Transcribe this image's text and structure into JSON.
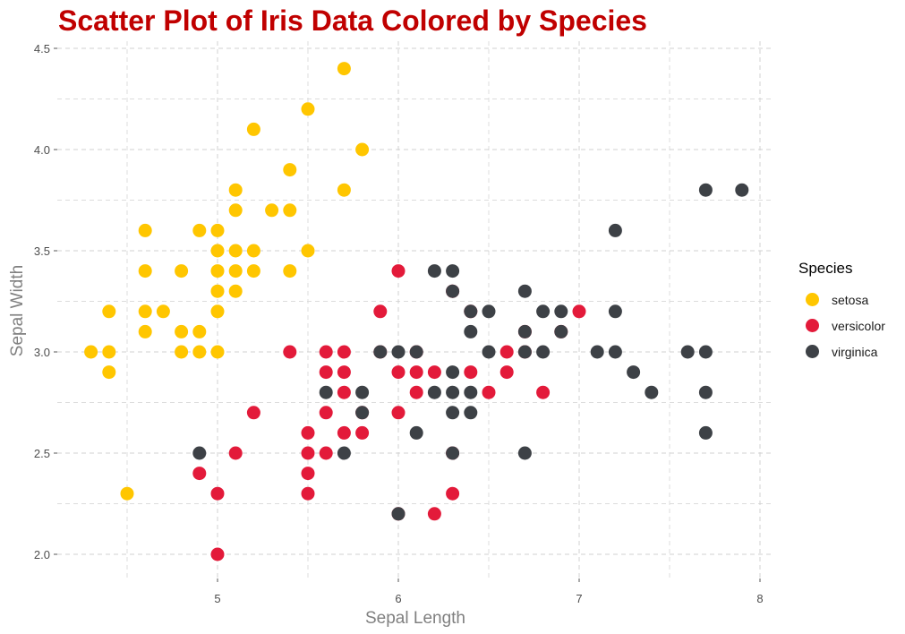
{
  "chart_data": {
    "type": "scatter",
    "title": "Scatter Plot of Iris Data Colored by Species",
    "xlabel": "Sepal Length",
    "ylabel": "Sepal Width",
    "xlim": [
      4.15,
      8.05
    ],
    "ylim": [
      1.88,
      4.52
    ],
    "x_ticks": [
      5,
      6,
      7,
      8
    ],
    "x_tick_labels": [
      "5",
      "6",
      "7",
      "8"
    ],
    "y_ticks": [
      2.0,
      2.5,
      3.0,
      3.5,
      4.0,
      4.5
    ],
    "y_tick_labels": [
      "2.0",
      "2.5",
      "3.0",
      "3.5",
      "4.0",
      "4.5"
    ],
    "grid": true,
    "legend_title": "Species",
    "legend_position": "right",
    "title_color": "#c00000",
    "series": [
      {
        "name": "setosa",
        "color": "#ffc600",
        "points": [
          [
            4.3,
            3.0
          ],
          [
            4.4,
            2.9
          ],
          [
            4.4,
            3.0
          ],
          [
            4.4,
            3.2
          ],
          [
            4.5,
            2.3
          ],
          [
            4.6,
            3.1
          ],
          [
            4.6,
            3.2
          ],
          [
            4.6,
            3.4
          ],
          [
            4.6,
            3.6
          ],
          [
            4.7,
            3.2
          ],
          [
            4.8,
            3.0
          ],
          [
            4.8,
            3.1
          ],
          [
            4.8,
            3.4
          ],
          [
            4.9,
            3.0
          ],
          [
            4.9,
            3.1
          ],
          [
            4.9,
            3.6
          ],
          [
            5.0,
            3.0
          ],
          [
            5.0,
            3.2
          ],
          [
            5.0,
            3.3
          ],
          [
            5.0,
            3.4
          ],
          [
            5.0,
            3.5
          ],
          [
            5.0,
            3.6
          ],
          [
            5.1,
            3.3
          ],
          [
            5.1,
            3.4
          ],
          [
            5.1,
            3.5
          ],
          [
            5.1,
            3.7
          ],
          [
            5.1,
            3.8
          ],
          [
            5.2,
            3.4
          ],
          [
            5.2,
            3.5
          ],
          [
            5.2,
            4.1
          ],
          [
            5.3,
            3.7
          ],
          [
            5.4,
            3.4
          ],
          [
            5.4,
            3.7
          ],
          [
            5.4,
            3.9
          ],
          [
            5.5,
            3.5
          ],
          [
            5.5,
            4.2
          ],
          [
            5.7,
            3.8
          ],
          [
            5.7,
            4.4
          ],
          [
            5.8,
            4.0
          ]
        ]
      },
      {
        "name": "versicolor",
        "color": "#e31a3a",
        "points": [
          [
            4.9,
            2.4
          ],
          [
            5.0,
            2.0
          ],
          [
            5.0,
            2.3
          ],
          [
            5.1,
            2.5
          ],
          [
            5.2,
            2.7
          ],
          [
            5.4,
            3.0
          ],
          [
            5.5,
            2.3
          ],
          [
            5.5,
            2.4
          ],
          [
            5.5,
            2.5
          ],
          [
            5.5,
            2.6
          ],
          [
            5.6,
            2.5
          ],
          [
            5.6,
            2.7
          ],
          [
            5.6,
            2.9
          ],
          [
            5.6,
            3.0
          ],
          [
            5.7,
            2.6
          ],
          [
            5.7,
            2.8
          ],
          [
            5.7,
            2.9
          ],
          [
            5.7,
            3.0
          ],
          [
            5.8,
            2.6
          ],
          [
            5.8,
            2.7
          ],
          [
            5.9,
            3.0
          ],
          [
            5.9,
            3.2
          ],
          [
            6.0,
            2.2
          ],
          [
            6.0,
            2.7
          ],
          [
            6.0,
            2.9
          ],
          [
            6.0,
            3.4
          ],
          [
            6.1,
            2.8
          ],
          [
            6.1,
            2.9
          ],
          [
            6.1,
            3.0
          ],
          [
            6.2,
            2.2
          ],
          [
            6.2,
            2.9
          ],
          [
            6.3,
            2.3
          ],
          [
            6.3,
            2.5
          ],
          [
            6.3,
            3.3
          ],
          [
            6.4,
            2.9
          ],
          [
            6.4,
            3.2
          ],
          [
            6.5,
            2.8
          ],
          [
            6.6,
            2.9
          ],
          [
            6.6,
            3.0
          ],
          [
            6.7,
            3.0
          ],
          [
            6.7,
            3.1
          ],
          [
            6.8,
            2.8
          ],
          [
            6.9,
            3.1
          ],
          [
            7.0,
            3.2
          ]
        ]
      },
      {
        "name": "virginica",
        "color": "#3d4146",
        "points": [
          [
            4.9,
            2.5
          ],
          [
            5.6,
            2.8
          ],
          [
            5.7,
            2.5
          ],
          [
            5.8,
            2.7
          ],
          [
            5.8,
            2.8
          ],
          [
            5.9,
            3.0
          ],
          [
            6.0,
            2.2
          ],
          [
            6.0,
            3.0
          ],
          [
            6.1,
            2.6
          ],
          [
            6.1,
            3.0
          ],
          [
            6.2,
            2.8
          ],
          [
            6.2,
            3.4
          ],
          [
            6.3,
            2.5
          ],
          [
            6.3,
            2.7
          ],
          [
            6.3,
            2.8
          ],
          [
            6.3,
            2.9
          ],
          [
            6.3,
            3.3
          ],
          [
            6.3,
            3.4
          ],
          [
            6.4,
            2.7
          ],
          [
            6.4,
            2.8
          ],
          [
            6.4,
            3.1
          ],
          [
            6.4,
            3.2
          ],
          [
            6.5,
            3.0
          ],
          [
            6.5,
            3.2
          ],
          [
            6.7,
            2.5
          ],
          [
            6.7,
            3.0
          ],
          [
            6.7,
            3.1
          ],
          [
            6.7,
            3.3
          ],
          [
            6.8,
            3.0
          ],
          [
            6.8,
            3.2
          ],
          [
            6.9,
            3.1
          ],
          [
            6.9,
            3.2
          ],
          [
            7.1,
            3.0
          ],
          [
            7.2,
            3.0
          ],
          [
            7.2,
            3.2
          ],
          [
            7.2,
            3.6
          ],
          [
            7.3,
            2.9
          ],
          [
            7.4,
            2.8
          ],
          [
            7.6,
            3.0
          ],
          [
            7.7,
            2.6
          ],
          [
            7.7,
            2.8
          ],
          [
            7.7,
            3.0
          ],
          [
            7.7,
            3.8
          ],
          [
            7.9,
            3.8
          ]
        ]
      }
    ]
  }
}
